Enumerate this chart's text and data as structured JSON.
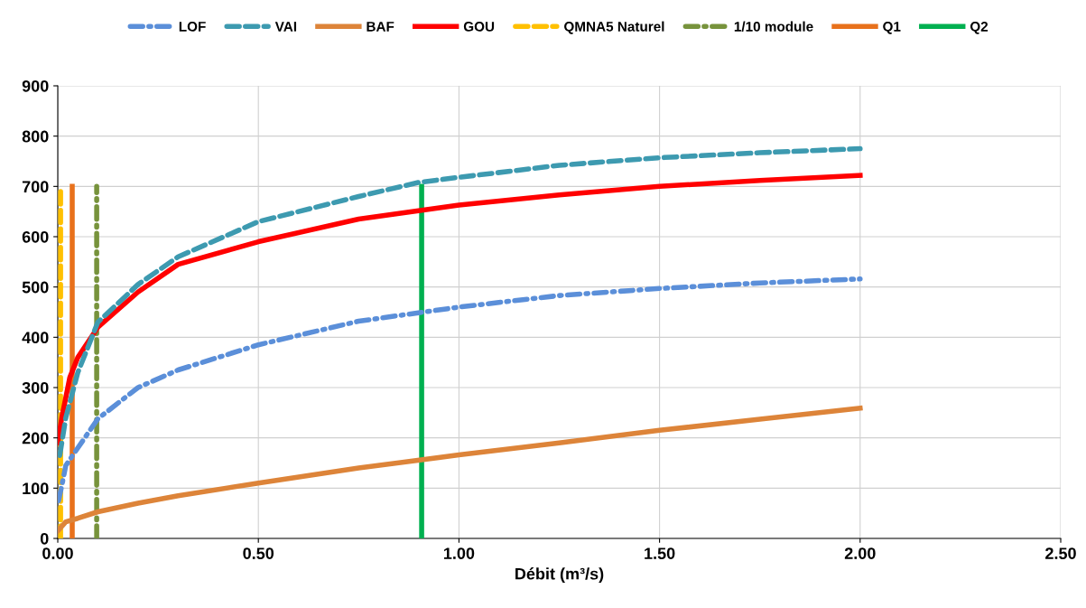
{
  "chart_data": {
    "type": "line",
    "xlabel": "Débit (m³/s)",
    "xlim": [
      0,
      2.5
    ],
    "xticks": [
      {
        "value": 0,
        "label": "0.00"
      },
      {
        "value": 0.5,
        "label": "0.50"
      },
      {
        "value": 1,
        "label": "1.00"
      },
      {
        "value": 1.5,
        "label": "1.50"
      },
      {
        "value": 2,
        "label": "2.00"
      },
      {
        "value": 2.5,
        "label": "2.50"
      }
    ],
    "ylim": [
      0,
      900
    ],
    "yticks": [
      0,
      100,
      200,
      300,
      400,
      500,
      600,
      700,
      800,
      900
    ],
    "grid": true,
    "legend": "top",
    "marker": "none",
    "series": [
      {
        "name": "LOF",
        "color": "#5b8fd9",
        "line_style": "dashdot",
        "x": [
          0.002,
          0.01,
          0.02,
          0.05,
          0.1,
          0.2,
          0.3,
          0.5,
          0.75,
          1.0,
          1.25,
          1.5,
          1.75,
          2.0
        ],
        "values": [
          75,
          105,
          145,
          180,
          238,
          300,
          335,
          385,
          432,
          460,
          483,
          497,
          508,
          516
        ]
      },
      {
        "name": "VAI",
        "color": "#3d9ab0",
        "line_style": "dashed",
        "x": [
          0.005,
          0.02,
          0.05,
          0.1,
          0.2,
          0.3,
          0.5,
          0.75,
          0.9,
          1.0,
          1.25,
          1.5,
          1.75,
          2.0
        ],
        "values": [
          165,
          240,
          330,
          430,
          505,
          560,
          630,
          680,
          708,
          718,
          742,
          757,
          767,
          775
        ]
      },
      {
        "name": "BAF",
        "color": "#dd8439",
        "line_style": "solid",
        "x": [
          0.0,
          0.02,
          0.05,
          0.1,
          0.2,
          0.3,
          0.5,
          0.75,
          1.0,
          1.25,
          1.5,
          1.75,
          2.0
        ],
        "values": [
          15,
          33,
          40,
          53,
          70,
          85,
          110,
          140,
          166,
          190,
          215,
          237,
          259
        ]
      },
      {
        "name": "GOU",
        "color": "#ff0000",
        "line_style": "solid",
        "x": [
          0.0,
          0.01,
          0.03,
          0.05,
          0.1,
          0.2,
          0.3,
          0.5,
          0.75,
          1.0,
          1.25,
          1.5,
          1.75,
          2.0
        ],
        "values": [
          190,
          240,
          320,
          360,
          420,
          490,
          545,
          590,
          635,
          663,
          683,
          700,
          712,
          722
        ]
      },
      {
        "name": "QMNA5 Naturel",
        "color": "#ffc000",
        "line_style": "dashed",
        "x": [
          0.007,
          0.007
        ],
        "values": [
          0,
          690
        ]
      },
      {
        "name": "1/10 module",
        "color": "#77933c",
        "line_style": "dashdot",
        "x": [
          0.097,
          0.097
        ],
        "values": [
          0,
          700
        ]
      },
      {
        "name": "Q1",
        "color": "#e8711c",
        "line_style": "solid",
        "x": [
          0.036,
          0.036
        ],
        "values": [
          0,
          700
        ]
      },
      {
        "name": "Q2",
        "color": "#00b050",
        "line_style": "solid",
        "x": [
          0.907,
          0.907
        ],
        "values": [
          0,
          700
        ]
      }
    ]
  }
}
